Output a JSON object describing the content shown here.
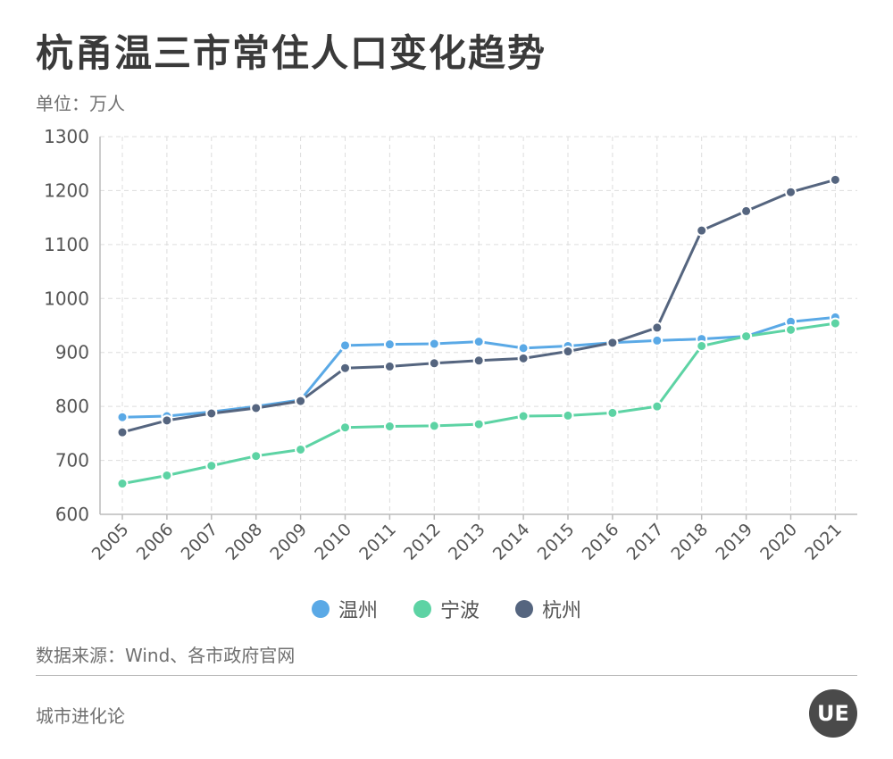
{
  "header": {
    "title": "杭甬温三市常住人口变化趋势",
    "unit": "单位：万人"
  },
  "footer": {
    "source": "数据来源：Wind、各市政府官网",
    "brand": "城市进化论",
    "logo_text": "UE"
  },
  "colors": {
    "温州": "#5aa9e6",
    "宁波": "#5dd3a4",
    "杭州": "#55657f",
    "grid": "#dddddd",
    "axis": "#bbbbbb",
    "tick_text": "#555555"
  },
  "chart_data": {
    "type": "line",
    "title": "杭甬温三市常住人口变化趋势",
    "ylabel": "单位：万人",
    "xlabel": "",
    "ylim": [
      600,
      1300
    ],
    "yticks": [
      600,
      700,
      800,
      900,
      1000,
      1100,
      1200,
      1300
    ],
    "grid": true,
    "legend_position": "bottom-center",
    "categories": [
      "2005",
      "2006",
      "2007",
      "2008",
      "2009",
      "2010",
      "2011",
      "2012",
      "2013",
      "2014",
      "2015",
      "2016",
      "2017",
      "2018",
      "2019",
      "2020",
      "2021"
    ],
    "series": [
      {
        "name": "温州",
        "values": [
          780,
          782,
          790,
          800,
          812,
          913,
          915,
          916,
          920,
          908,
          912,
          918,
          922,
          925,
          930,
          957,
          965
        ]
      },
      {
        "name": "宁波",
        "values": [
          657,
          672,
          690,
          708,
          720,
          761,
          763,
          764,
          767,
          782,
          783,
          788,
          800,
          912,
          930,
          942,
          954
        ]
      },
      {
        "name": "杭州",
        "values": [
          752,
          774,
          787,
          797,
          810,
          871,
          874,
          880,
          885,
          889,
          902,
          918,
          946,
          1126,
          1162,
          1197,
          1220
        ]
      }
    ]
  }
}
